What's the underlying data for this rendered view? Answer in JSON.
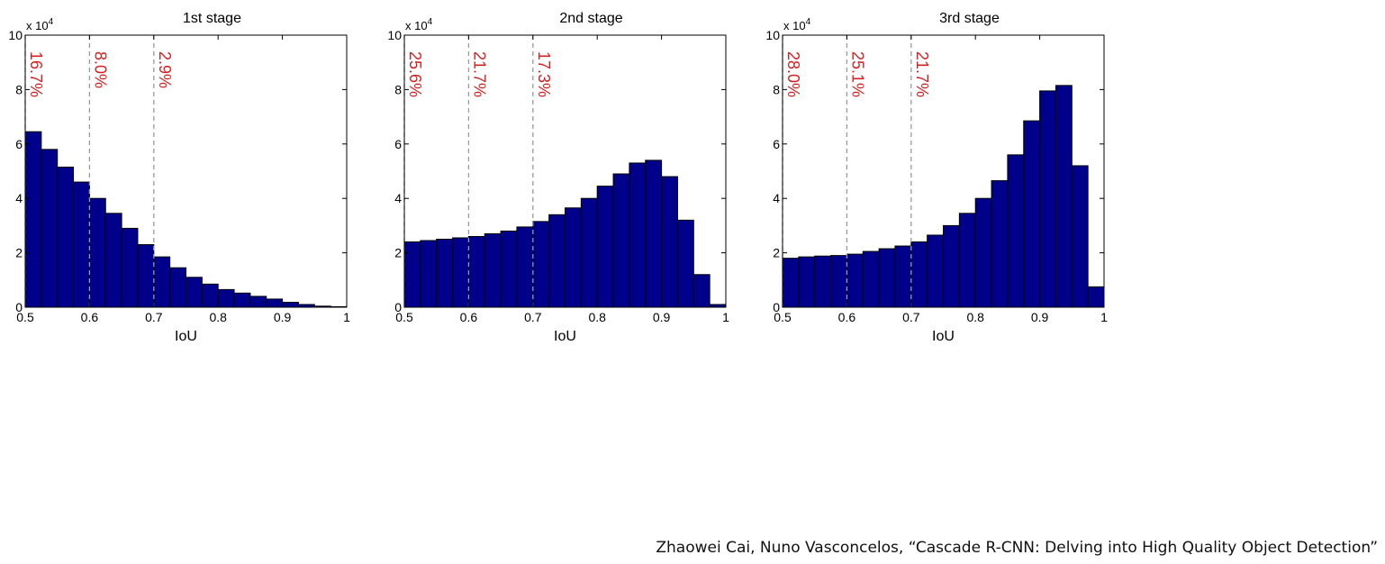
{
  "chart_data": [
    {
      "type": "bar",
      "title": "1st stage",
      "xlabel": "IoU",
      "ylabel": "",
      "y_multiplier": "x 10",
      "y_multiplier_exp": "4",
      "xlim": [
        0.5,
        1
      ],
      "ylim": [
        0,
        10
      ],
      "xticks": [
        "0.5",
        "0.6",
        "0.7",
        "0.8",
        "0.9",
        "1"
      ],
      "yticks": [
        "0",
        "2",
        "4",
        "6",
        "8",
        "10"
      ],
      "bin_width": 0.025,
      "bin_starts": [
        0.5,
        0.525,
        0.55,
        0.575,
        0.6,
        0.625,
        0.65,
        0.675,
        0.7,
        0.725,
        0.75,
        0.775,
        0.8,
        0.825,
        0.85,
        0.875,
        0.9,
        0.925,
        0.95,
        0.975
      ],
      "values": [
        6.45,
        5.8,
        5.15,
        4.6,
        4.0,
        3.45,
        2.9,
        2.3,
        1.85,
        1.45,
        1.1,
        0.85,
        0.65,
        0.52,
        0.4,
        0.3,
        0.18,
        0.1,
        0.04,
        0.02
      ],
      "thresholds": [
        {
          "x": 0.5,
          "label": "16.7%"
        },
        {
          "x": 0.6,
          "label": "8.0%"
        },
        {
          "x": 0.7,
          "label": "2.9%"
        }
      ],
      "bar_color": "#00008B",
      "label_color": "#d42020",
      "grid": false
    },
    {
      "type": "bar",
      "title": "2nd stage",
      "xlabel": "IoU",
      "ylabel": "",
      "y_multiplier": "x 10",
      "y_multiplier_exp": "4",
      "xlim": [
        0.5,
        1
      ],
      "ylim": [
        0,
        10
      ],
      "xticks": [
        "0.5",
        "0.6",
        "0.7",
        "0.8",
        "0.9",
        "1"
      ],
      "yticks": [
        "0",
        "2",
        "4",
        "6",
        "8",
        "10"
      ],
      "bin_width": 0.025,
      "bin_starts": [
        0.5,
        0.525,
        0.55,
        0.575,
        0.6,
        0.625,
        0.65,
        0.675,
        0.7,
        0.725,
        0.75,
        0.775,
        0.8,
        0.825,
        0.85,
        0.875,
        0.9,
        0.925,
        0.95,
        0.975
      ],
      "values": [
        2.4,
        2.45,
        2.5,
        2.55,
        2.6,
        2.7,
        2.8,
        2.95,
        3.15,
        3.4,
        3.65,
        4.0,
        4.45,
        4.9,
        5.3,
        5.4,
        4.8,
        3.2,
        1.2,
        0.1
      ],
      "thresholds": [
        {
          "x": 0.5,
          "label": "25.6%"
        },
        {
          "x": 0.6,
          "label": "21.7%"
        },
        {
          "x": 0.7,
          "label": "17.3%"
        }
      ],
      "bar_color": "#00008B",
      "label_color": "#d42020",
      "grid": false
    },
    {
      "type": "bar",
      "title": "3rd stage",
      "xlabel": "IoU",
      "ylabel": "",
      "y_multiplier": "x 10",
      "y_multiplier_exp": "4",
      "xlim": [
        0.5,
        1
      ],
      "ylim": [
        0,
        10
      ],
      "xticks": [
        "0.5",
        "0.6",
        "0.7",
        "0.8",
        "0.9",
        "1"
      ],
      "yticks": [
        "0",
        "2",
        "4",
        "6",
        "8",
        "10"
      ],
      "bin_width": 0.025,
      "bin_starts": [
        0.5,
        0.525,
        0.55,
        0.575,
        0.6,
        0.625,
        0.65,
        0.675,
        0.7,
        0.725,
        0.75,
        0.775,
        0.8,
        0.825,
        0.85,
        0.875,
        0.9,
        0.925,
        0.95,
        0.975
      ],
      "values": [
        1.8,
        1.85,
        1.88,
        1.9,
        1.95,
        2.05,
        2.15,
        2.25,
        2.4,
        2.65,
        3.0,
        3.45,
        4.0,
        4.65,
        5.6,
        6.85,
        7.95,
        8.15,
        5.2,
        0.75
      ],
      "thresholds": [
        {
          "x": 0.5,
          "label": "28.0%"
        },
        {
          "x": 0.6,
          "label": "25.1%"
        },
        {
          "x": 0.7,
          "label": "21.7%"
        }
      ],
      "bar_color": "#00008B",
      "label_color": "#d42020",
      "grid": false
    }
  ],
  "citation": "Zhaowei Cai, Nuno Vasconcelos, “Cascade R-CNN: Delving into High Quality Object Detection”"
}
